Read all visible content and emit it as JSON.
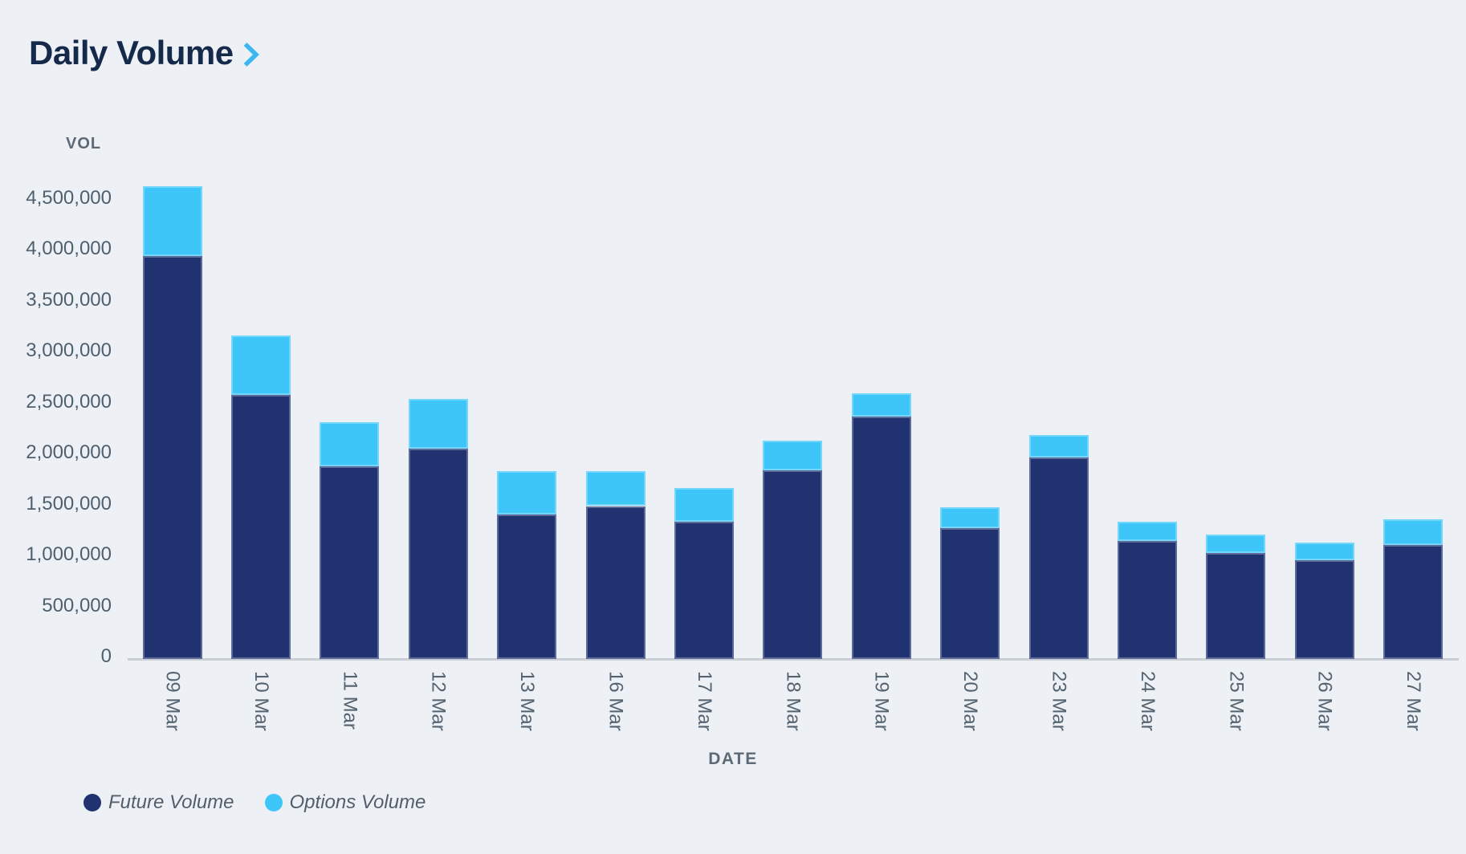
{
  "title": "Daily Volume",
  "header": {
    "chevron_icon": "chevron-right"
  },
  "chart_data": {
    "type": "bar",
    "stacked": true,
    "title": "Daily Volume",
    "xlabel": "DATE",
    "ylabel": "VOL",
    "categories": [
      "09 Mar",
      "10 Mar",
      "11 Mar",
      "12 Mar",
      "13 Mar",
      "16 Mar",
      "17 Mar",
      "18 Mar",
      "19 Mar",
      "20 Mar",
      "23 Mar",
      "24 Mar",
      "25 Mar",
      "26 Mar",
      "27 Mar"
    ],
    "series": [
      {
        "name": "Future Volume",
        "color": "#213271",
        "values": [
          3950000,
          2590000,
          1890000,
          2060000,
          1420000,
          1500000,
          1350000,
          1850000,
          2380000,
          1280000,
          1980000,
          1160000,
          1040000,
          970000,
          1120000
        ]
      },
      {
        "name": "Options Volume",
        "color": "#3ec6f9",
        "values": [
          690000,
          580000,
          430000,
          490000,
          420000,
          340000,
          330000,
          290000,
          230000,
          210000,
          220000,
          190000,
          180000,
          170000,
          250000
        ]
      }
    ],
    "ylim": [
      0,
      4500000
    ],
    "y_tick_step": 500000,
    "y_tick_labels": [
      "0",
      "500,000",
      "1,000,000",
      "1,500,000",
      "2,000,000",
      "2,500,000",
      "3,000,000",
      "3,500,000",
      "4,000,000",
      "4,500,000"
    ],
    "grid": false,
    "legend_position": "bottom-left"
  },
  "legend": {
    "future_label": "Future Volume",
    "options_label": "Options Volume"
  },
  "colors": {
    "background": "#edf1f5",
    "future_bar": "#213271",
    "options_bar": "#3ec6f9",
    "title_text": "#15294b",
    "chevron": "#3db7f2",
    "axis_text": "#4f5f6d",
    "baseline": "#c9ced4"
  }
}
